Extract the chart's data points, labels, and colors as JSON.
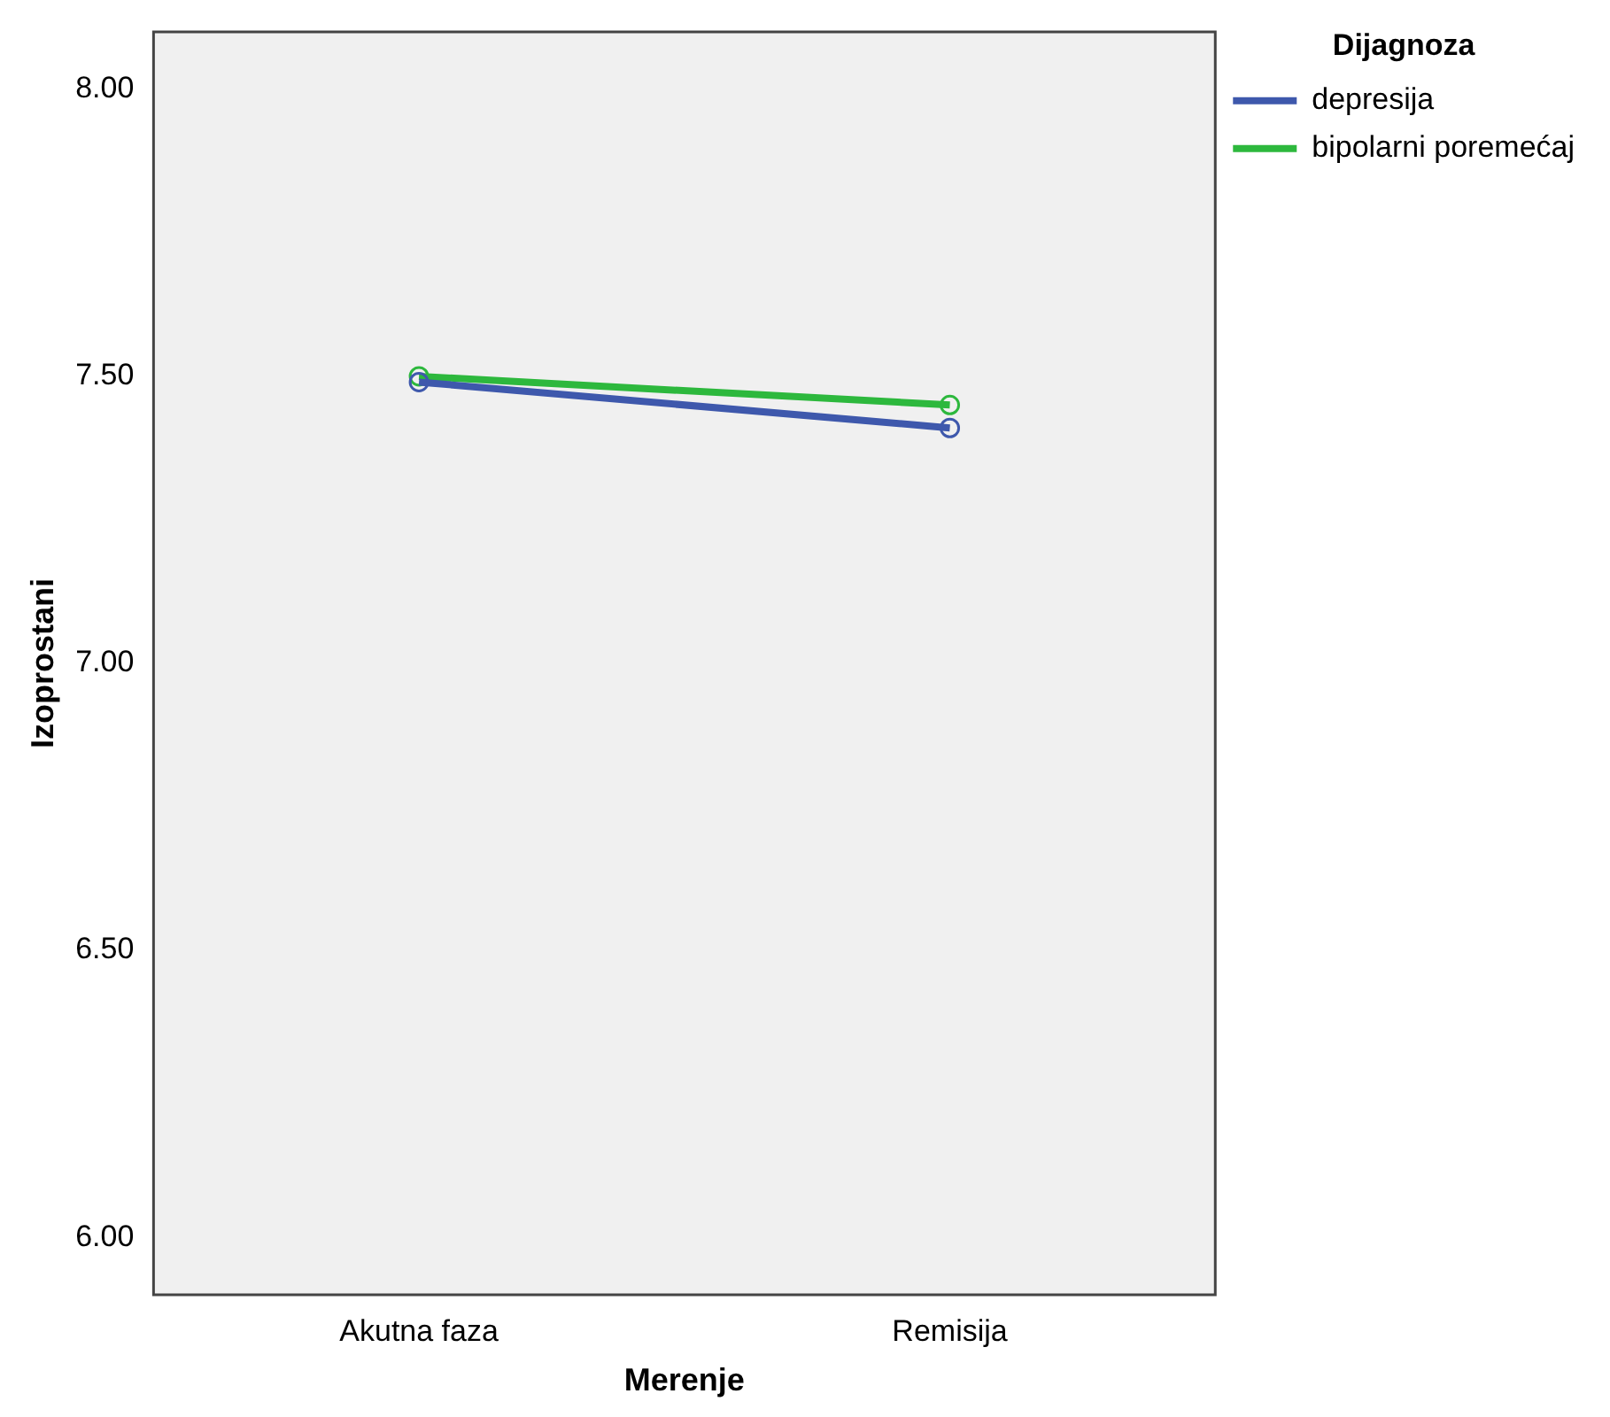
{
  "chart_data": {
    "type": "line",
    "xlabel": "Merenje",
    "ylabel": "Izoprostani",
    "legend_title": "Dijagnoza",
    "categories": [
      "Akutna faza",
      "Remisija"
    ],
    "series": [
      {
        "name": "depresija",
        "color": "#3e58ac",
        "values": [
          7.49,
          7.41
        ]
      },
      {
        "name": "bipolarni poremećaj",
        "color": "#2db83d",
        "values": [
          7.5,
          7.45
        ]
      }
    ],
    "ylim": [
      5.9,
      8.1
    ],
    "yticks": [
      {
        "value": 6,
        "label": "6.00"
      },
      {
        "value": 6.5,
        "label": "6.50"
      },
      {
        "value": 7,
        "label": "7.00"
      },
      {
        "value": 7.5,
        "label": "7.50"
      },
      {
        "value": 8,
        "label": "8.00"
      }
    ],
    "grid": false,
    "legend": "right",
    "marker": "circle",
    "line_style": "solid"
  }
}
